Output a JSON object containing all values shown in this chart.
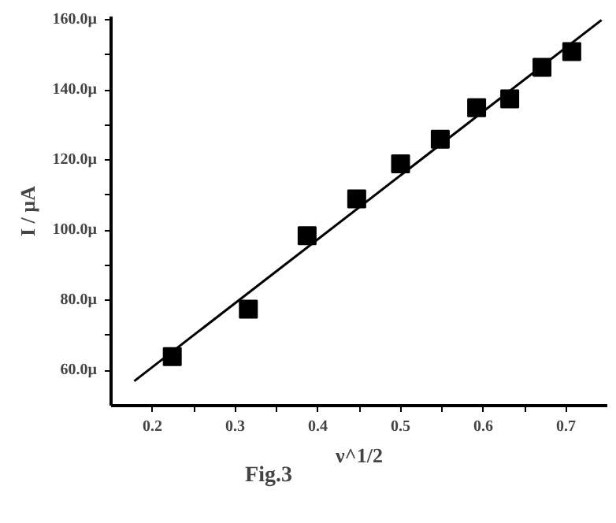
{
  "chart_data": {
    "type": "scatter",
    "xlabel": "ν^1/2",
    "ylabel": "I / µA",
    "annotations": [
      "Fig.3"
    ],
    "x": [
      0.224,
      0.316,
      0.387,
      0.447,
      0.5,
      0.548,
      0.592,
      0.632,
      0.671,
      0.707
    ],
    "series": [
      {
        "color": "#000000",
        "marker": "square",
        "values": [
          64,
          77.5,
          98.5,
          109,
          119,
          126,
          135,
          137.5,
          146.5,
          151
        ]
      },
      {
        "type": "line",
        "color": "#000000",
        "marker": "none",
        "line_style": "solid",
        "x": [
          0.178,
          0.743
        ],
        "values": [
          57,
          160
        ]
      }
    ],
    "xlim": [
      0.15,
      0.75
    ],
    "ylim": [
      50,
      161
    ],
    "xticks": [
      0.2,
      {
        "value": 0.25,
        "label": null
      },
      0.3,
      {
        "value": 0.35,
        "label": null
      },
      0.4,
      {
        "value": 0.45,
        "label": null
      },
      0.5,
      {
        "value": 0.55,
        "label": null
      },
      0.6,
      {
        "value": 0.65,
        "label": null
      },
      0.7
    ],
    "yticks": [
      {
        "value": 60,
        "label": "60.0µ"
      },
      {
        "value": 70,
        "label": null
      },
      {
        "value": 80,
        "label": "80.0µ"
      },
      {
        "value": 90,
        "label": null
      },
      {
        "value": 100,
        "label": "100.0µ"
      },
      {
        "value": 110,
        "label": null
      },
      {
        "value": 120,
        "label": "120.0µ"
      },
      {
        "value": 130,
        "label": null
      },
      {
        "value": 140,
        "label": "140.0µ"
      },
      {
        "value": 150,
        "label": null
      },
      {
        "value": 160,
        "label": "160.0µ"
      }
    ],
    "grid": false
  }
}
